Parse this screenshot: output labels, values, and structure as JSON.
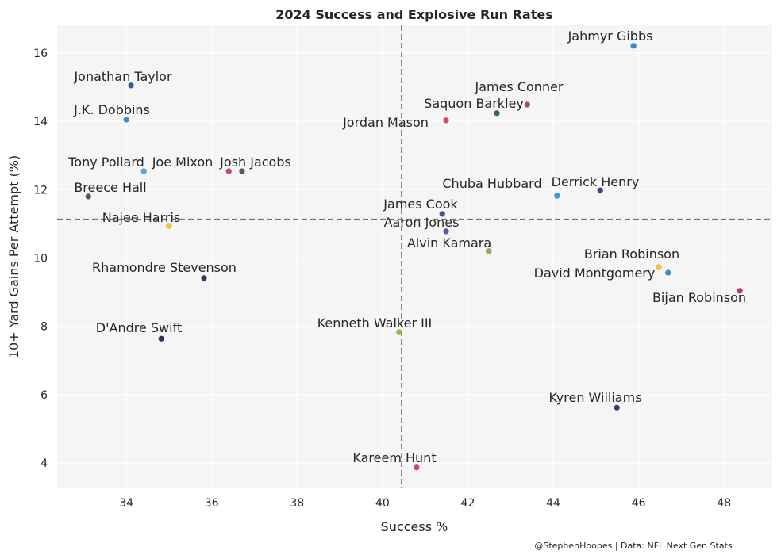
{
  "chart_data": {
    "type": "scatter",
    "title": "2024 Success and Explosive Run Rates",
    "xlabel": "Success %",
    "ylabel": "10+ Yard Gains Per Attempt (%)",
    "xlim": [
      32.38,
      49.13
    ],
    "ylim": [
      3.26,
      16.81
    ],
    "xticks": [
      34,
      36,
      38,
      40,
      42,
      44,
      46,
      48
    ],
    "yticks": [
      4,
      6,
      8,
      10,
      12,
      14,
      16
    ],
    "grid": true,
    "background": "#f5f5f5",
    "reference_lines": {
      "x_mean": 40.45,
      "y_mean": 11.13,
      "color": "#707070",
      "style": "dashed"
    },
    "credit": "@StephenHoopes | Data: NFL Next Gen Stats",
    "points": [
      {
        "name": "Jahmyr Gibbs",
        "x": 45.88,
        "y": 16.21,
        "color": "#2b8fd0"
      },
      {
        "name": "Jonathan Taylor",
        "x": 34.11,
        "y": 15.05,
        "color": "#2a5a9a"
      },
      {
        "name": "J.K. Dobbins",
        "x": 34.0,
        "y": 14.05,
        "color": "#3d8fd1"
      },
      {
        "name": "James Conner",
        "x": 43.39,
        "y": 14.49,
        "color": "#b2475e"
      },
      {
        "name": "Saquon Barkley",
        "x": 42.68,
        "y": 14.24,
        "color": "#2f6474"
      },
      {
        "name": "Jordan Mason",
        "x": 41.49,
        "y": 14.03,
        "color": "#d84a5e"
      },
      {
        "name": "Tony Pollard",
        "x": 34.41,
        "y": 12.54,
        "color": "#5aa5de"
      },
      {
        "name": "Joe Mixon",
        "x": 36.4,
        "y": 12.54,
        "color": "#d0475e"
      },
      {
        "name": "Josh Jacobs",
        "x": 36.71,
        "y": 12.54,
        "color": "#4b5e56"
      },
      {
        "name": "Breece Hall",
        "x": 33.11,
        "y": 11.8,
        "color": "#445e50"
      },
      {
        "name": "Chuba Hubbard",
        "x": 44.09,
        "y": 11.82,
        "color": "#2e9fdb"
      },
      {
        "name": "Derrick Henry",
        "x": 45.1,
        "y": 11.98,
        "color": "#4b3a8f"
      },
      {
        "name": "James Cook",
        "x": 41.4,
        "y": 11.29,
        "color": "#2a5aa8"
      },
      {
        "name": "Aaron Jones",
        "x": 41.49,
        "y": 10.78,
        "color": "#6b4fa6"
      },
      {
        "name": "Najee Harris",
        "x": 35.0,
        "y": 10.94,
        "color": "#ffc22e"
      },
      {
        "name": "Alvin Kamara",
        "x": 42.49,
        "y": 10.2,
        "color": "#b09a6c"
      },
      {
        "name": "Brian Robinson",
        "x": 46.47,
        "y": 9.73,
        "color": "#ffc52f"
      },
      {
        "name": "David Montgomery",
        "x": 46.69,
        "y": 9.57,
        "color": "#3a8ccc"
      },
      {
        "name": "Bijan Robinson",
        "x": 48.37,
        "y": 9.04,
        "color": "#bf3b55"
      },
      {
        "name": "Rhamondre Stevenson",
        "x": 35.82,
        "y": 9.41,
        "color": "#2e3a58"
      },
      {
        "name": "D'Andre Swift",
        "x": 34.82,
        "y": 7.64,
        "color": "#1f3358"
      },
      {
        "name": "Kenneth Walker III",
        "x": 40.39,
        "y": 7.83,
        "color": "#82c341"
      },
      {
        "name": "Kyren Williams",
        "x": 45.49,
        "y": 5.62,
        "color": "#2f4466"
      },
      {
        "name": "Kareem Hunt",
        "x": 40.8,
        "y": 3.87,
        "color": "#d64550"
      }
    ]
  }
}
